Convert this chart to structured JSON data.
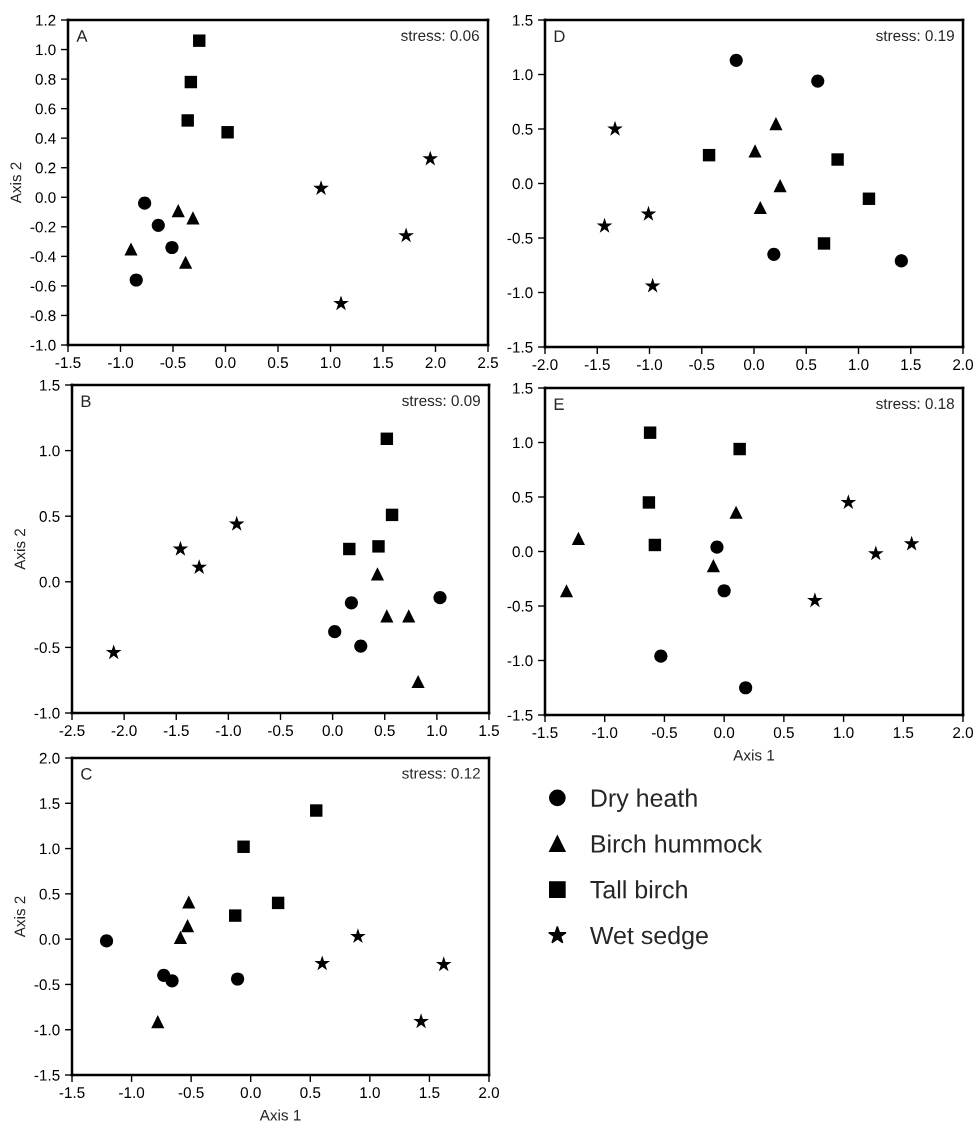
{
  "chart_data": [
    {
      "type": "scatter",
      "ylabel": "Axis 2",
      "annotations": [
        "A",
        "stress: 0.06"
      ],
      "xlim": [
        -1.5,
        2.5
      ],
      "ylim": [
        -1.0,
        1.2
      ],
      "xticks": [
        -1.5,
        {
          "value": -1,
          "label": "-1.0"
        },
        -0.5,
        {
          "value": 0,
          "label": "0.0"
        },
        0.5,
        {
          "value": 1,
          "label": "1.0"
        },
        1.5,
        {
          "value": 2,
          "label": "2.0"
        },
        2.5
      ],
      "yticks": [
        {
          "value": -1,
          "label": "-1.0"
        },
        -0.8,
        -0.6,
        -0.4,
        -0.2,
        {
          "value": 0,
          "label": "0.0"
        },
        0.2,
        0.4,
        0.6,
        0.8,
        {
          "value": 1,
          "label": "1.0"
        },
        1.2
      ],
      "grid": false,
      "series": [
        {
          "color": "#000000",
          "marker": "circle",
          "x": [
            -0.77,
            -0.64,
            -0.51,
            -0.85
          ],
          "values": [
            -0.04,
            -0.19,
            -0.34,
            -0.56
          ]
        },
        {
          "color": "#000000",
          "marker": "triangle",
          "x": [
            -0.45,
            -0.31,
            -0.9,
            -0.38
          ],
          "values": [
            -0.09,
            -0.14,
            -0.35,
            -0.44
          ]
        },
        {
          "color": "#000000",
          "marker": "square",
          "x": [
            -0.25,
            -0.33,
            -0.36,
            0.02
          ],
          "values": [
            1.06,
            0.78,
            0.52,
            0.44
          ]
        },
        {
          "color": "#000000",
          "marker": "star",
          "x": [
            0.91,
            1.95,
            1.72,
            1.1
          ],
          "values": [
            0.06,
            0.26,
            -0.26,
            -0.72
          ]
        }
      ]
    },
    {
      "type": "scatter",
      "annotations": [
        "D",
        "stress: 0.19"
      ],
      "xlim": [
        -2.0,
        2.0
      ],
      "ylim": [
        -1.5,
        1.5
      ],
      "xticks": [
        {
          "value": -2,
          "label": "-2.0"
        },
        -1.5,
        {
          "value": -1,
          "label": "-1.0"
        },
        -0.5,
        {
          "value": 0,
          "label": "0.0"
        },
        0.5,
        {
          "value": 1,
          "label": "1.0"
        },
        1.5,
        {
          "value": 2,
          "label": "2.0"
        }
      ],
      "yticks": [
        -1.5,
        {
          "value": -1,
          "label": "-1.0"
        },
        -0.5,
        {
          "value": 0,
          "label": "0.0"
        },
        0.5,
        {
          "value": 1,
          "label": "1.0"
        },
        1.5
      ],
      "grid": false,
      "series": [
        {
          "color": "#000000",
          "marker": "circle",
          "x": [
            -0.17,
            0.61,
            0.19,
            1.41
          ],
          "values": [
            1.13,
            0.94,
            -0.65,
            -0.71
          ]
        },
        {
          "color": "#000000",
          "marker": "triangle",
          "x": [
            0.21,
            0.01,
            0.25,
            0.06
          ],
          "values": [
            0.55,
            0.3,
            -0.02,
            -0.22
          ]
        },
        {
          "color": "#000000",
          "marker": "square",
          "x": [
            -0.43,
            0.8,
            1.1,
            0.67
          ],
          "values": [
            0.26,
            0.22,
            -0.14,
            -0.55
          ]
        },
        {
          "color": "#000000",
          "marker": "star",
          "x": [
            -1.33,
            -1.01,
            -1.43,
            -0.97
          ],
          "values": [
            0.5,
            -0.28,
            -0.39,
            -0.94
          ]
        }
      ]
    },
    {
      "type": "scatter",
      "ylabel": "Axis 2",
      "annotations": [
        "B",
        "stress: 0.09"
      ],
      "xlim": [
        -2.5,
        1.5
      ],
      "ylim": [
        -1.0,
        1.5
      ],
      "xticks": [
        -2.5,
        {
          "value": -2,
          "label": "-2.0"
        },
        -1.5,
        {
          "value": -1,
          "label": "-1.0"
        },
        -0.5,
        {
          "value": 0,
          "label": "0.0"
        },
        0.5,
        {
          "value": 1,
          "label": "1.0"
        },
        1.5
      ],
      "yticks": [
        {
          "value": -1,
          "label": "-1.0"
        },
        -0.5,
        {
          "value": 0,
          "label": "0.0"
        },
        0.5,
        {
          "value": 1,
          "label": "1.0"
        },
        1.5
      ],
      "grid": false,
      "series": [
        {
          "color": "#000000",
          "marker": "circle",
          "x": [
            0.18,
            0.02,
            0.27,
            1.03
          ],
          "values": [
            -0.16,
            -0.38,
            -0.49,
            -0.12
          ]
        },
        {
          "color": "#000000",
          "marker": "triangle",
          "x": [
            0.43,
            0.52,
            0.73,
            0.82
          ],
          "values": [
            0.06,
            -0.26,
            -0.26,
            -0.76
          ]
        },
        {
          "color": "#000000",
          "marker": "square",
          "x": [
            0.52,
            0.57,
            0.16,
            0.44
          ],
          "values": [
            1.09,
            0.51,
            0.25,
            0.27
          ]
        },
        {
          "color": "#000000",
          "marker": "star",
          "x": [
            -2.1,
            -1.46,
            -1.28,
            -0.92
          ],
          "values": [
            -0.54,
            0.25,
            0.11,
            0.44
          ]
        }
      ]
    },
    {
      "type": "scatter",
      "xlabel": "Axis 1",
      "annotations": [
        "E",
        "stress: 0.18"
      ],
      "xlim": [
        -1.5,
        2.0
      ],
      "ylim": [
        -1.5,
        1.5
      ],
      "xticks": [
        -1.5,
        {
          "value": -1,
          "label": "-1.0"
        },
        -0.5,
        {
          "value": 0,
          "label": "0.0"
        },
        0.5,
        {
          "value": 1,
          "label": "1.0"
        },
        1.5,
        {
          "value": 2,
          "label": "2.0"
        }
      ],
      "yticks": [
        -1.5,
        {
          "value": -1,
          "label": "-1.0"
        },
        -0.5,
        {
          "value": 0,
          "label": "0.0"
        },
        0.5,
        {
          "value": 1,
          "label": "1.0"
        },
        1.5
      ],
      "grid": false,
      "series": [
        {
          "color": "#000000",
          "marker": "circle",
          "x": [
            -0.06,
            0.0,
            -0.53,
            0.18
          ],
          "values": [
            0.04,
            -0.36,
            -0.96,
            -1.25
          ]
        },
        {
          "color": "#000000",
          "marker": "triangle",
          "x": [
            -1.22,
            -1.32,
            0.1,
            -0.09
          ],
          "values": [
            0.12,
            -0.36,
            0.36,
            -0.13
          ]
        },
        {
          "color": "#000000",
          "marker": "square",
          "x": [
            -0.62,
            0.13,
            -0.63,
            -0.58
          ],
          "values": [
            1.09,
            0.94,
            0.45,
            0.06
          ]
        },
        {
          "color": "#000000",
          "marker": "star",
          "x": [
            1.04,
            1.27,
            1.57,
            0.76
          ],
          "values": [
            0.45,
            -0.02,
            0.07,
            -0.45
          ]
        }
      ]
    },
    {
      "type": "scatter",
      "xlabel": "Axis 1",
      "ylabel": "Axis 2",
      "annotations": [
        "C",
        "stress: 0.12"
      ],
      "xlim": [
        -1.5,
        2.0
      ],
      "ylim": [
        -1.5,
        2.0
      ],
      "xticks": [
        -1.5,
        {
          "value": -1,
          "label": "-1.0"
        },
        -0.5,
        {
          "value": 0,
          "label": "0.0"
        },
        0.5,
        {
          "value": 1,
          "label": "1.0"
        },
        1.5,
        {
          "value": 2,
          "label": "2.0"
        }
      ],
      "yticks": [
        -1.5,
        {
          "value": -1,
          "label": "-1.0"
        },
        -0.5,
        {
          "value": 0,
          "label": "0.0"
        },
        0.5,
        {
          "value": 1,
          "label": "1.0"
        },
        1.5,
        {
          "value": 2,
          "label": "2.0"
        }
      ],
      "grid": false,
      "legend": "right",
      "series": [
        {
          "name": "Dry heath",
          "color": "#000000",
          "marker": "circle",
          "x": [
            -1.21,
            -0.73,
            -0.66,
            -0.11
          ],
          "values": [
            -0.02,
            -0.4,
            -0.46,
            -0.44
          ]
        },
        {
          "name": "Birch hummock",
          "color": "#000000",
          "marker": "triangle",
          "x": [
            -0.52,
            -0.53,
            -0.59,
            -0.78
          ],
          "values": [
            0.41,
            0.15,
            0.02,
            -0.91
          ]
        },
        {
          "name": "Tall birch",
          "color": "#000000",
          "marker": "square",
          "x": [
            0.55,
            -0.06,
            -0.13,
            0.23
          ],
          "values": [
            1.42,
            1.02,
            0.26,
            0.4
          ]
        },
        {
          "name": "Wet sedge",
          "color": "#000000",
          "marker": "star",
          "x": [
            0.9,
            0.6,
            1.62,
            1.43
          ],
          "values": [
            0.03,
            -0.27,
            -0.28,
            -0.91
          ]
        }
      ]
    }
  ]
}
